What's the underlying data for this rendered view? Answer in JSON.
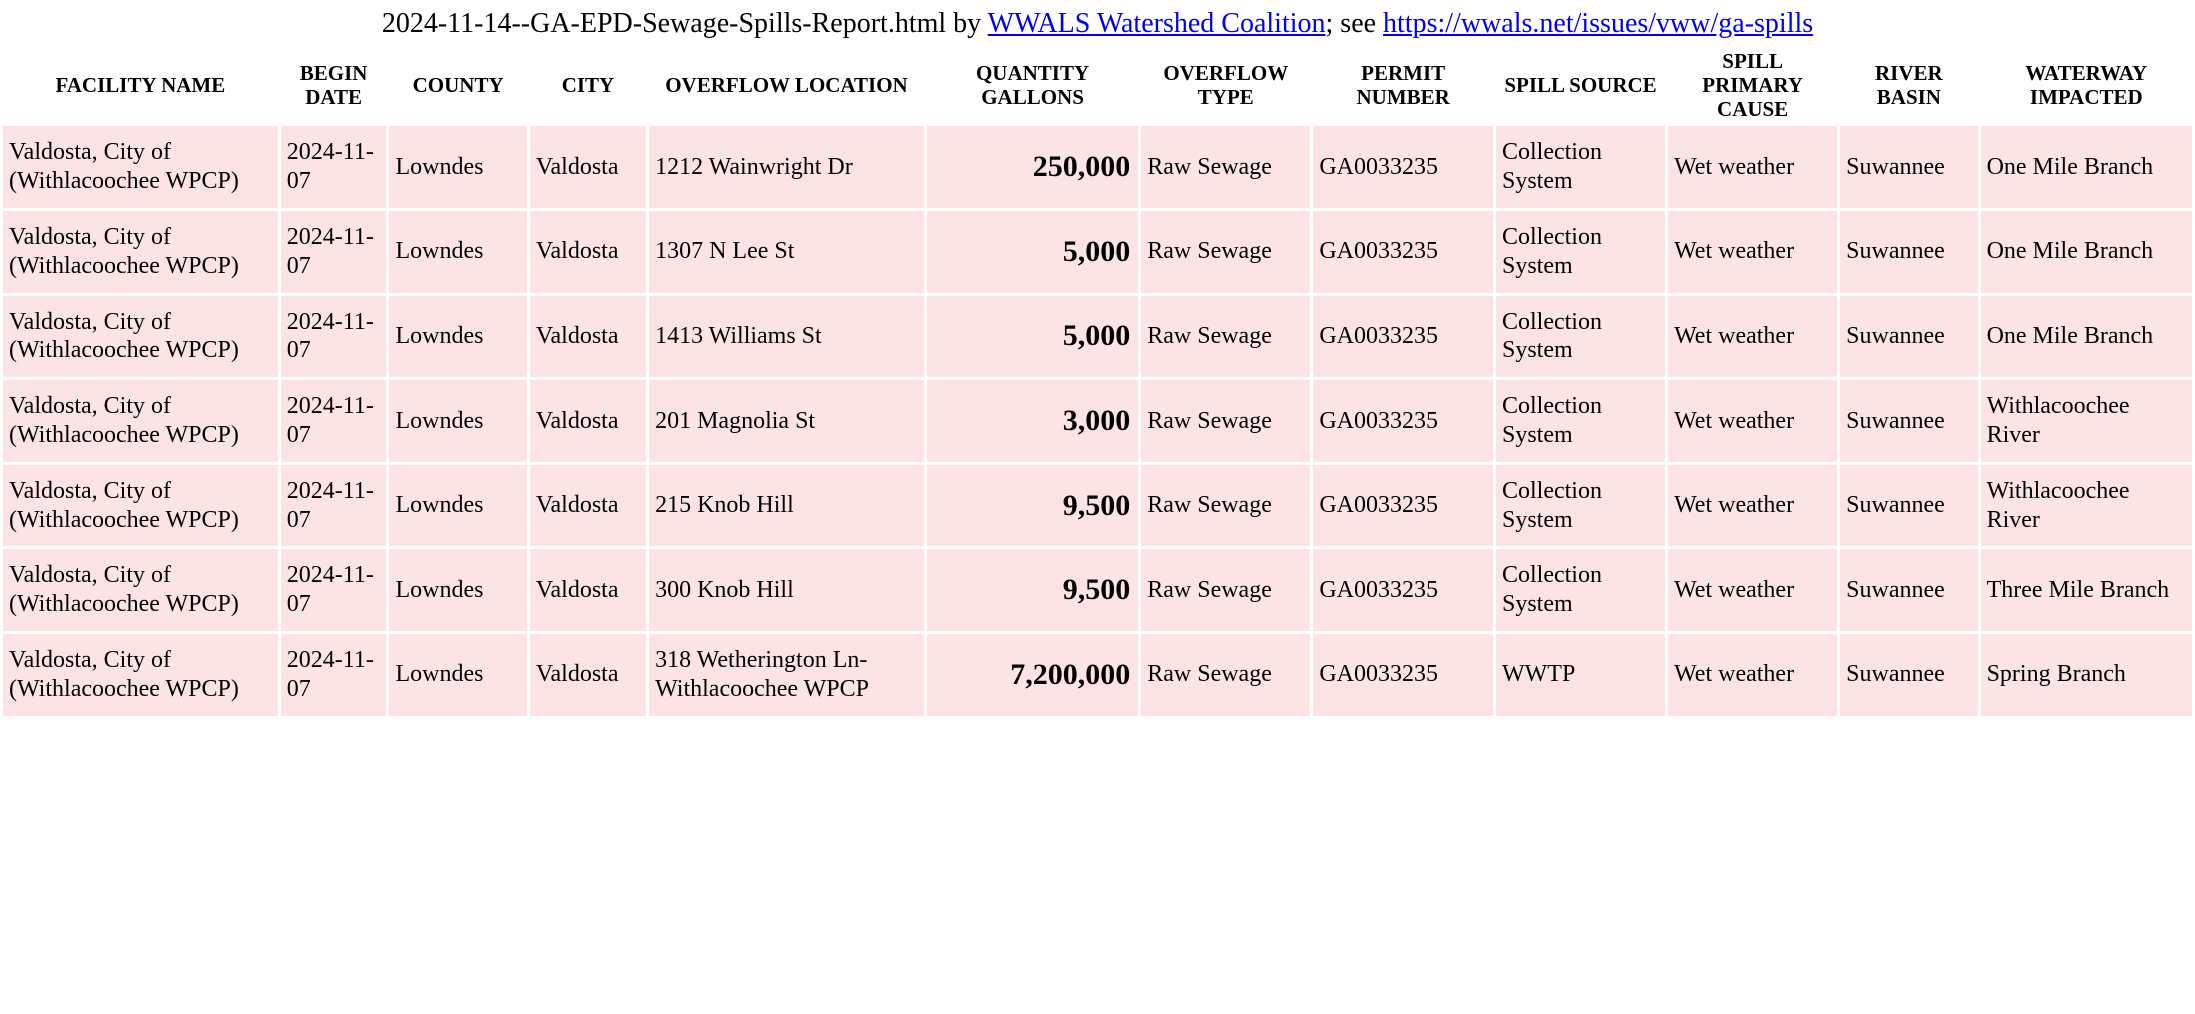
{
  "title": {
    "prefix": "2024-11-14--GA-EPD-Sewage-Spills-Report.html by ",
    "link1_text": "WWALS Watershed Coalition",
    "middle": "; see ",
    "link2_text": "https://wwals.net/issues/vww/ga-spills"
  },
  "styling": {
    "row_background": "#fde4e4",
    "header_background": "#ffffff",
    "link_color": "#0000ee",
    "body_background": "#ffffff",
    "quantity_bold": true,
    "quantity_align": "right",
    "header_fontsize": 21,
    "body_fontsize": 24,
    "quantity_fontsize": 30,
    "title_fontsize": 28,
    "border_spacing": 3
  },
  "table": {
    "columns": [
      {
        "key": "facility",
        "label": "FACILITY NAME",
        "width_pct": 13,
        "class": "col-facility"
      },
      {
        "key": "date",
        "label": "BEGIN DATE",
        "width_pct": 5,
        "class": "col-date"
      },
      {
        "key": "county",
        "label": "COUNTY",
        "width_pct": 6.5,
        "class": "col-county"
      },
      {
        "key": "city",
        "label": "CITY",
        "width_pct": 5.5,
        "class": "col-city"
      },
      {
        "key": "location",
        "label": "OVERFLOW LOCATION",
        "width_pct": 13,
        "class": "col-location"
      },
      {
        "key": "quantity",
        "label": "QUANTITY GALLONS",
        "width_pct": 10,
        "class": "col-quantity",
        "cell_class": "quantity"
      },
      {
        "key": "type",
        "label": "OVERFLOW TYPE",
        "width_pct": 8,
        "class": "col-type"
      },
      {
        "key": "permit",
        "label": "PERMIT NUMBER",
        "width_pct": 8.5,
        "class": "col-permit"
      },
      {
        "key": "source",
        "label": "SPILL SOURCE",
        "width_pct": 8,
        "class": "col-source"
      },
      {
        "key": "cause",
        "label": "SPILL PRIMARY CAUSE",
        "width_pct": 8,
        "class": "col-cause"
      },
      {
        "key": "basin",
        "label": "RIVER BASIN",
        "width_pct": 6.5,
        "class": "col-basin"
      },
      {
        "key": "waterway",
        "label": "WATERWAY IMPACTED",
        "width_pct": 10,
        "class": "col-waterway"
      }
    ],
    "rows": [
      {
        "facility": "Valdosta, City of (Withlacoochee WPCP)",
        "date": "2024-11-07",
        "county": "Lowndes",
        "city": "Valdosta",
        "location": "1212 Wainwright Dr",
        "quantity": "250,000",
        "type": "Raw Sewage",
        "permit": "GA0033235",
        "source": "Collection System",
        "cause": "Wet weather",
        "basin": "Suwannee",
        "waterway": "One Mile Branch"
      },
      {
        "facility": "Valdosta, City of (Withlacoochee WPCP)",
        "date": "2024-11-07",
        "county": "Lowndes",
        "city": "Valdosta",
        "location": "1307 N Lee St",
        "quantity": "5,000",
        "type": "Raw Sewage",
        "permit": "GA0033235",
        "source": "Collection System",
        "cause": "Wet weather",
        "basin": "Suwannee",
        "waterway": "One Mile Branch"
      },
      {
        "facility": "Valdosta, City of (Withlacoochee WPCP)",
        "date": "2024-11-07",
        "county": "Lowndes",
        "city": "Valdosta",
        "location": "1413 Williams St",
        "quantity": "5,000",
        "type": "Raw Sewage",
        "permit": "GA0033235",
        "source": "Collection System",
        "cause": "Wet weather",
        "basin": "Suwannee",
        "waterway": "One Mile Branch"
      },
      {
        "facility": "Valdosta, City of (Withlacoochee WPCP)",
        "date": "2024-11-07",
        "county": "Lowndes",
        "city": "Valdosta",
        "location": "201 Magnolia St",
        "quantity": "3,000",
        "type": "Raw Sewage",
        "permit": "GA0033235",
        "source": "Collection System",
        "cause": "Wet weather",
        "basin": "Suwannee",
        "waterway": "Withlacoochee River"
      },
      {
        "facility": "Valdosta, City of (Withlacoochee WPCP)",
        "date": "2024-11-07",
        "county": "Lowndes",
        "city": "Valdosta",
        "location": "215 Knob Hill",
        "quantity": "9,500",
        "type": "Raw Sewage",
        "permit": "GA0033235",
        "source": "Collection System",
        "cause": "Wet weather",
        "basin": "Suwannee",
        "waterway": "Withlacoochee River"
      },
      {
        "facility": "Valdosta, City of (Withlacoochee WPCP)",
        "date": "2024-11-07",
        "county": "Lowndes",
        "city": "Valdosta",
        "location": "300 Knob Hill",
        "quantity": "9,500",
        "type": "Raw Sewage",
        "permit": "GA0033235",
        "source": "Collection System",
        "cause": "Wet weather",
        "basin": "Suwannee",
        "waterway": "Three Mile Branch"
      },
      {
        "facility": "Valdosta, City of (Withlacoochee WPCP)",
        "date": "2024-11-07",
        "county": "Lowndes",
        "city": "Valdosta",
        "location": "318 Wetherington Ln- Withlacoochee WPCP",
        "quantity": "7,200,000",
        "type": "Raw Sewage",
        "permit": "GA0033235",
        "source": "WWTP",
        "cause": "Wet weather",
        "basin": "Suwannee",
        "waterway": "Spring Branch"
      }
    ]
  }
}
